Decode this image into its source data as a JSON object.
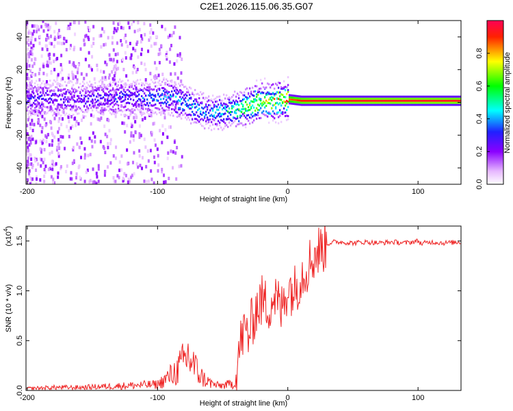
{
  "title": "C2E1.2026.115.06.35.G07",
  "chart_data": [
    {
      "type": "heatmap",
      "xlabel": "Height of straight line (km)",
      "ylabel": "Frequency (Hz)",
      "xlim": [
        -201,
        133
      ],
      "ylim": [
        -50,
        50
      ],
      "xticks": [
        -200,
        -100,
        0,
        100
      ],
      "yticks": [
        -40,
        -20,
        0,
        20,
        40
      ],
      "colorbar": {
        "label": "Normalized spectral amplitude",
        "range": [
          0,
          1
        ],
        "ticks": [
          0.0,
          0.2,
          0.4,
          0.6,
          0.8
        ],
        "colormap": "white-violet-blue-cyan-green-yellow-red"
      },
      "ridge": {
        "x": [
          -200,
          -180,
          -160,
          -140,
          -120,
          -100,
          -90,
          -80,
          -70,
          -60,
          -50,
          -40,
          -30,
          -20,
          -10,
          0,
          10,
          20,
          50,
          100,
          133
        ],
        "frequency": [
          2,
          3,
          2,
          3,
          3,
          3,
          3,
          0,
          -4,
          -6,
          -6,
          -4,
          -2,
          1,
          1,
          2,
          1,
          1,
          1,
          1,
          1
        ],
        "peak_amplitude": [
          0.3,
          0.3,
          0.28,
          0.32,
          0.35,
          0.4,
          0.42,
          0.45,
          0.45,
          0.4,
          0.5,
          0.6,
          0.7,
          0.75,
          0.8,
          0.85,
          0.9,
          0.92,
          0.93,
          0.93,
          0.93
        ]
      }
    },
    {
      "type": "line",
      "xlabel": "Height of straight line (km)",
      "ylabel": "SNR (10 * v/v)",
      "y_multiplier": "(x10",
      "y_multiplier_exp": "4",
      "xlim": [
        -201,
        133
      ],
      "ylim": [
        0,
        1.65
      ],
      "xticks": [
        -200,
        -100,
        0,
        100
      ],
      "yticks": [
        0.0,
        0.5,
        1.0,
        1.5
      ],
      "series": [
        {
          "color": "#ee2222",
          "x": [
            -200,
            -180,
            -160,
            -140,
            -120,
            -100,
            -95,
            -90,
            -85,
            -80,
            -77,
            -75,
            -72,
            -70,
            -67,
            -65,
            -60,
            -55,
            -50,
            -45,
            -40,
            -38,
            -35,
            -32,
            -30,
            -25,
            -20,
            -15,
            -10,
            -5,
            0,
            5,
            10,
            15,
            20,
            25,
            30,
            35,
            40,
            50,
            60,
            70,
            80,
            90,
            95,
            100,
            103,
            105,
            110,
            120,
            133
          ],
          "y": [
            0.02,
            0.03,
            0.03,
            0.04,
            0.05,
            0.06,
            0.1,
            0.15,
            0.2,
            0.28,
            0.35,
            0.32,
            0.25,
            0.2,
            0.15,
            0.12,
            0.08,
            0.05,
            0.05,
            0.06,
            0.08,
            0.35,
            0.55,
            0.6,
            0.55,
            0.8,
            0.9,
            0.85,
            0.95,
            0.8,
            1.05,
            1.0,
            1.15,
            1.25,
            1.35,
            1.42,
            1.47,
            1.49,
            1.49,
            1.48,
            1.49,
            1.48,
            1.49,
            1.48,
            1.49,
            1.5,
            1.47,
            1.48,
            1.49,
            1.48,
            1.49
          ]
        }
      ]
    }
  ]
}
